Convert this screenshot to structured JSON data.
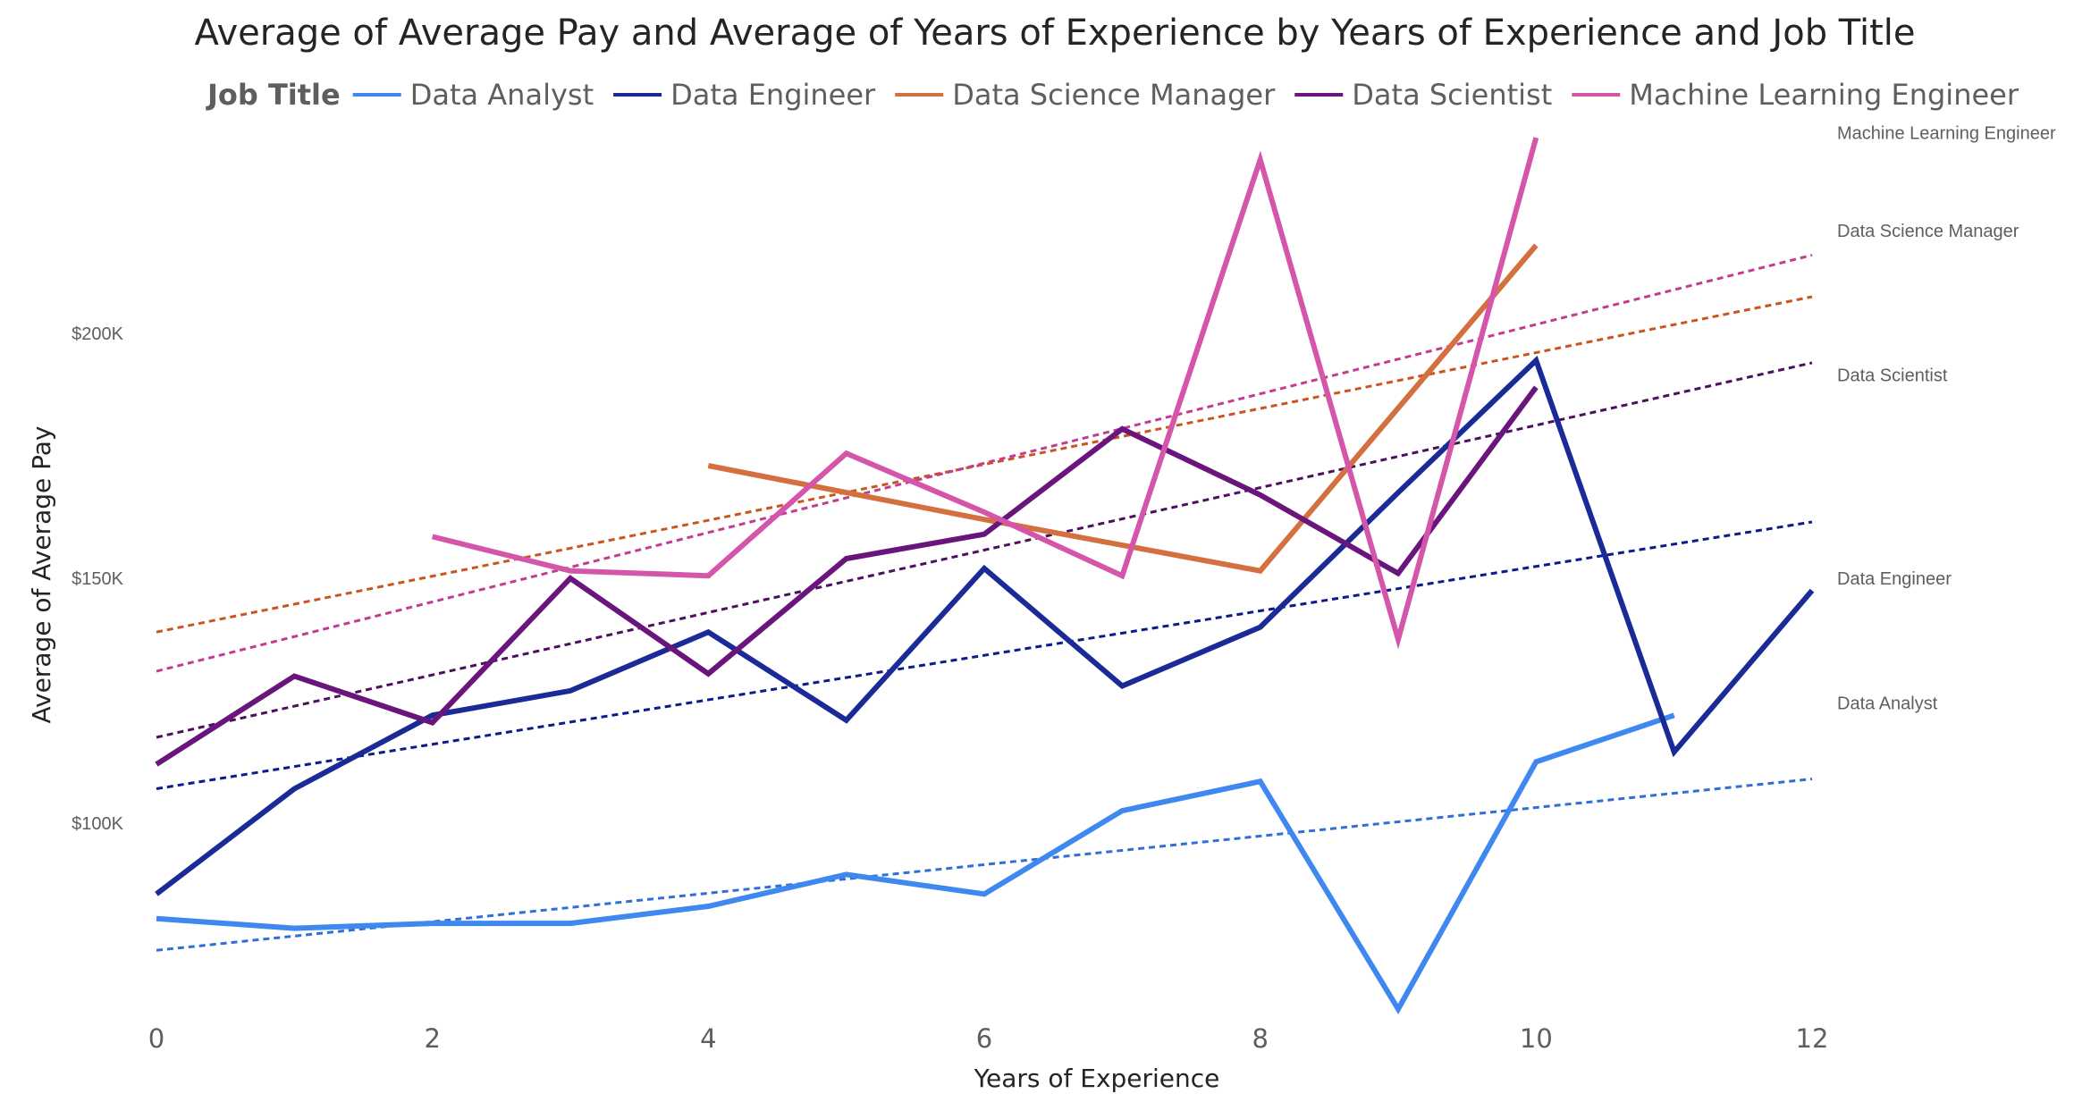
{
  "chart_data": {
    "type": "line",
    "title": "Average of Average Pay and Average of Years of Experience by Years of Experience and Job Title",
    "legend_title": "Job Title",
    "legend_position": "top",
    "xlabel": "Years of Experience",
    "ylabel": "Average of Average Pay",
    "xlim": [
      0,
      12
    ],
    "ylim": [
      62000,
      242000
    ],
    "x_ticks": [
      0,
      2,
      4,
      6,
      8,
      10,
      12
    ],
    "y_ticks": [
      100000,
      150000,
      200000
    ],
    "y_tick_labels": [
      "$100K",
      "$150K",
      "$200K"
    ],
    "grid": false,
    "trend_lines": true,
    "series": [
      {
        "name": "Data Analyst",
        "color": "#3f88ef",
        "trend_color": "#2f6fd6",
        "points": [
          [
            0,
            80500
          ],
          [
            1,
            78500
          ],
          [
            2,
            79500
          ],
          [
            3,
            79500
          ],
          [
            4,
            83000
          ],
          [
            5,
            89500
          ],
          [
            6,
            85500
          ],
          [
            7,
            102500
          ],
          [
            8,
            108500
          ],
          [
            9,
            62000
          ],
          [
            10,
            112500
          ],
          [
            11,
            122000
          ]
        ],
        "trend": [
          [
            0,
            74000
          ],
          [
            12,
            109000
          ]
        ]
      },
      {
        "name": "Data Engineer",
        "color": "#1a2a96",
        "trend_color": "#0d1a8a",
        "points": [
          [
            0,
            85500
          ],
          [
            1,
            107000
          ],
          [
            2,
            122000
          ],
          [
            3,
            127000
          ],
          [
            4,
            139000
          ],
          [
            5,
            121000
          ],
          [
            6,
            152000
          ],
          [
            7,
            128000
          ],
          [
            8,
            140000
          ],
          [
            9,
            167500
          ],
          [
            10,
            194500
          ],
          [
            11,
            114500
          ],
          [
            12,
            147500
          ]
        ],
        "trend": [
          [
            0,
            107000
          ],
          [
            12,
            161500
          ]
        ]
      },
      {
        "name": "Data Science Manager",
        "color": "#d4703f",
        "trend_color": "#c9561f",
        "points": [
          [
            4,
            173000
          ],
          [
            6,
            162000
          ],
          [
            8,
            151500
          ],
          [
            10,
            218000
          ]
        ],
        "trend": [
          [
            0,
            139000
          ],
          [
            12,
            207500
          ]
        ]
      },
      {
        "name": "Data Scientist",
        "color": "#6a157b",
        "trend_color": "#4d0f5e",
        "points": [
          [
            0,
            112000
          ],
          [
            1,
            130000
          ],
          [
            2,
            120500
          ],
          [
            3,
            150000
          ],
          [
            4,
            130500
          ],
          [
            5,
            154000
          ],
          [
            6,
            159000
          ],
          [
            7,
            180500
          ],
          [
            8,
            167000
          ],
          [
            9,
            151000
          ],
          [
            10,
            189000
          ]
        ],
        "trend": [
          [
            0,
            117500
          ],
          [
            12,
            194000
          ]
        ]
      },
      {
        "name": "Machine Learning Engineer",
        "color": "#d455a9",
        "trend_color": "#c23d92",
        "points": [
          [
            2,
            158500
          ],
          [
            3,
            151500
          ],
          [
            4,
            150500
          ],
          [
            5,
            175500
          ],
          [
            6,
            163500
          ],
          [
            7,
            150500
          ],
          [
            8,
            235500
          ],
          [
            9,
            137500
          ],
          [
            10,
            240000
          ]
        ],
        "trend": [
          [
            0,
            131000
          ],
          [
            12,
            216000
          ]
        ]
      }
    ],
    "end_labels": [
      {
        "name": "Machine Learning Engineer",
        "anchor_value": 241000
      },
      {
        "name": "Data Science Manager",
        "anchor_value": 221000
      },
      {
        "name": "Data Scientist",
        "anchor_value": 191500
      },
      {
        "name": "Data Engineer",
        "anchor_value": 150000
      },
      {
        "name": "Data Analyst",
        "anchor_value": 124500
      }
    ]
  }
}
